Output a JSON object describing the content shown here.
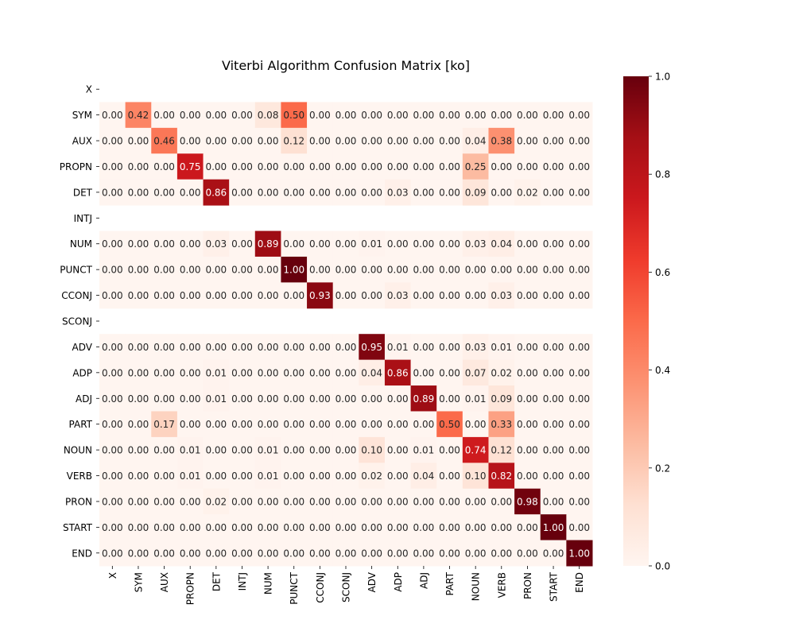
{
  "chart_data": {
    "type": "heatmap",
    "title": "Viterbi Algorithm Confusion Matrix [ko]",
    "xlabel": "",
    "ylabel": "",
    "x_categories": [
      "X",
      "SYM",
      "AUX",
      "PROPN",
      "DET",
      "INTJ",
      "NUM",
      "PUNCT",
      "CCONJ",
      "SCONJ",
      "ADV",
      "ADP",
      "ADJ",
      "PART",
      "NOUN",
      "VERB",
      "PRON",
      "START",
      "END"
    ],
    "y_categories": [
      "X",
      "SYM",
      "AUX",
      "PROPN",
      "DET",
      "INTJ",
      "NUM",
      "PUNCT",
      "CCONJ",
      "SCONJ",
      "ADV",
      "ADP",
      "ADJ",
      "PART",
      "NOUN",
      "VERB",
      "PRON",
      "START",
      "END"
    ],
    "values": [
      [
        null,
        null,
        null,
        null,
        null,
        null,
        null,
        null,
        null,
        null,
        null,
        null,
        null,
        null,
        null,
        null,
        null,
        null,
        null
      ],
      [
        0.0,
        0.42,
        0.0,
        0.0,
        0.0,
        0.0,
        0.08,
        0.5,
        0.0,
        0.0,
        0.0,
        0.0,
        0.0,
        0.0,
        0.0,
        0.0,
        0.0,
        0.0,
        0.0
      ],
      [
        0.0,
        0.0,
        0.46,
        0.0,
        0.0,
        0.0,
        0.0,
        0.12,
        0.0,
        0.0,
        0.0,
        0.0,
        0.0,
        0.0,
        0.04,
        0.38,
        0.0,
        0.0,
        0.0
      ],
      [
        0.0,
        0.0,
        0.0,
        0.75,
        0.0,
        0.0,
        0.0,
        0.0,
        0.0,
        0.0,
        0.0,
        0.0,
        0.0,
        0.0,
        0.25,
        0.0,
        0.0,
        0.0,
        0.0
      ],
      [
        0.0,
        0.0,
        0.0,
        0.0,
        0.86,
        0.0,
        0.0,
        0.0,
        0.0,
        0.0,
        0.0,
        0.03,
        0.0,
        0.0,
        0.09,
        0.0,
        0.02,
        0.0,
        0.0
      ],
      [
        null,
        null,
        null,
        null,
        null,
        null,
        null,
        null,
        null,
        null,
        null,
        null,
        null,
        null,
        null,
        null,
        null,
        null,
        null
      ],
      [
        0.0,
        0.0,
        0.0,
        0.0,
        0.03,
        0.0,
        0.89,
        0.0,
        0.0,
        0.0,
        0.01,
        0.0,
        0.0,
        0.0,
        0.03,
        0.04,
        0.0,
        0.0,
        0.0
      ],
      [
        0.0,
        0.0,
        0.0,
        0.0,
        0.0,
        0.0,
        0.0,
        1.0,
        0.0,
        0.0,
        0.0,
        0.0,
        0.0,
        0.0,
        0.0,
        0.0,
        0.0,
        0.0,
        0.0
      ],
      [
        0.0,
        0.0,
        0.0,
        0.0,
        0.0,
        0.0,
        0.0,
        0.0,
        0.93,
        0.0,
        0.0,
        0.03,
        0.0,
        0.0,
        0.0,
        0.03,
        0.0,
        0.0,
        0.0
      ],
      [
        null,
        null,
        null,
        null,
        null,
        null,
        null,
        null,
        null,
        null,
        null,
        null,
        null,
        null,
        null,
        null,
        null,
        null,
        null
      ],
      [
        0.0,
        0.0,
        0.0,
        0.0,
        0.0,
        0.0,
        0.0,
        0.0,
        0.0,
        0.0,
        0.95,
        0.01,
        0.0,
        0.0,
        0.03,
        0.01,
        0.0,
        0.0,
        0.0
      ],
      [
        0.0,
        0.0,
        0.0,
        0.0,
        0.01,
        0.0,
        0.0,
        0.0,
        0.0,
        0.0,
        0.04,
        0.86,
        0.0,
        0.0,
        0.07,
        0.02,
        0.0,
        0.0,
        0.0
      ],
      [
        0.0,
        0.0,
        0.0,
        0.0,
        0.01,
        0.0,
        0.0,
        0.0,
        0.0,
        0.0,
        0.0,
        0.0,
        0.89,
        0.0,
        0.01,
        0.09,
        0.0,
        0.0,
        0.0
      ],
      [
        0.0,
        0.0,
        0.17,
        0.0,
        0.0,
        0.0,
        0.0,
        0.0,
        0.0,
        0.0,
        0.0,
        0.0,
        0.0,
        0.5,
        0.0,
        0.33,
        0.0,
        0.0,
        0.0
      ],
      [
        0.0,
        0.0,
        0.0,
        0.01,
        0.0,
        0.0,
        0.01,
        0.0,
        0.0,
        0.0,
        0.1,
        0.0,
        0.01,
        0.0,
        0.74,
        0.12,
        0.0,
        0.0,
        0.0
      ],
      [
        0.0,
        0.0,
        0.0,
        0.01,
        0.0,
        0.0,
        0.01,
        0.0,
        0.0,
        0.0,
        0.02,
        0.0,
        0.04,
        0.0,
        0.1,
        0.82,
        0.0,
        0.0,
        0.0
      ],
      [
        0.0,
        0.0,
        0.0,
        0.0,
        0.02,
        0.0,
        0.0,
        0.0,
        0.0,
        0.0,
        0.0,
        0.0,
        0.0,
        0.0,
        0.0,
        0.0,
        0.98,
        0.0,
        0.0
      ],
      [
        0.0,
        0.0,
        0.0,
        0.0,
        0.0,
        0.0,
        0.0,
        0.0,
        0.0,
        0.0,
        0.0,
        0.0,
        0.0,
        0.0,
        0.0,
        0.0,
        0.0,
        1.0,
        0.0
      ],
      [
        0.0,
        0.0,
        0.0,
        0.0,
        0.0,
        0.0,
        0.0,
        0.0,
        0.0,
        0.0,
        0.0,
        0.0,
        0.0,
        0.0,
        0.0,
        0.0,
        0.0,
        0.0,
        1.0
      ]
    ],
    "value_format": "0.00",
    "colormap": "Reds",
    "colormap_stops": [
      "#fff5f0",
      "#fee0d2",
      "#fcbba1",
      "#fc9272",
      "#fb6a4a",
      "#ef3b2c",
      "#cb181d",
      "#a50f15",
      "#67000d"
    ],
    "colorbar": {
      "range": [
        0.0,
        1.0
      ],
      "ticks": [
        "0.0",
        "0.2",
        "0.4",
        "0.6",
        "0.8",
        "1.0"
      ],
      "placement": "right"
    },
    "grid": false,
    "legend": "none"
  }
}
